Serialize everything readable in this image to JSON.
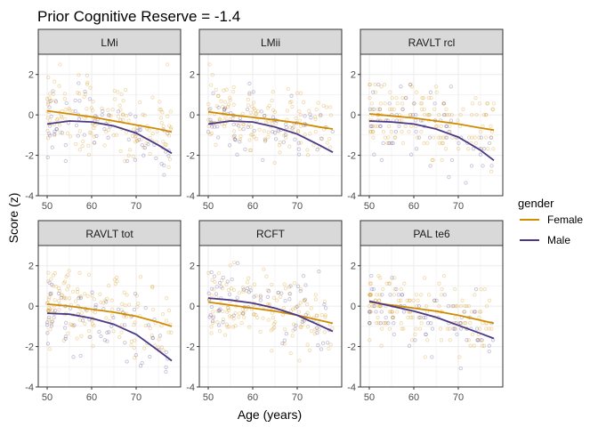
{
  "chart_data": {
    "type": "scatter",
    "title": "Prior Cognitive Reserve = -1.4",
    "xlabel": "Age (years)",
    "ylabel": "Score (z)",
    "xlim": [
      48,
      80
    ],
    "ylim": [
      -4,
      3
    ],
    "x_ticks": [
      50,
      60,
      70
    ],
    "y_ticks": [
      -4,
      -2,
      0,
      2
    ],
    "grid": true,
    "facet_layout": "2 rows x 3 columns",
    "legend": {
      "title": "gender",
      "placement": "right",
      "entries": [
        {
          "name": "Female",
          "color": "#D08C00"
        },
        {
          "name": "Male",
          "color": "#4A3886"
        }
      ]
    },
    "panels": [
      {
        "name": "LMi",
        "series": [
          {
            "name": "Female",
            "x": [
              50,
              55,
              60,
              65,
              70,
              75,
              78
            ],
            "y": [
              0.2,
              0.05,
              -0.1,
              -0.3,
              -0.5,
              -0.7,
              -0.85
            ]
          },
          {
            "name": "Male",
            "x": [
              50,
              55,
              60,
              65,
              70,
              75,
              78
            ],
            "y": [
              -0.45,
              -0.3,
              -0.35,
              -0.55,
              -0.9,
              -1.5,
              -1.9
            ]
          }
        ]
      },
      {
        "name": "LMii",
        "series": [
          {
            "name": "Female",
            "x": [
              50,
              55,
              60,
              65,
              70,
              75,
              78
            ],
            "y": [
              0.15,
              0.0,
              -0.12,
              -0.25,
              -0.4,
              -0.6,
              -0.7
            ]
          },
          {
            "name": "Male",
            "x": [
              50,
              55,
              60,
              65,
              70,
              75,
              78
            ],
            "y": [
              -0.45,
              -0.3,
              -0.35,
              -0.6,
              -0.95,
              -1.5,
              -1.85
            ]
          }
        ]
      },
      {
        "name": "RAVLT rcl",
        "series": [
          {
            "name": "Female",
            "x": [
              50,
              55,
              60,
              65,
              70,
              75,
              78
            ],
            "y": [
              0.05,
              -0.05,
              -0.15,
              -0.3,
              -0.45,
              -0.65,
              -0.75
            ]
          },
          {
            "name": "Male",
            "x": [
              50,
              55,
              60,
              65,
              70,
              75,
              78
            ],
            "y": [
              -0.3,
              -0.35,
              -0.45,
              -0.7,
              -1.1,
              -1.75,
              -2.25
            ]
          }
        ]
      },
      {
        "name": "RAVLT tot",
        "series": [
          {
            "name": "Female",
            "x": [
              50,
              55,
              60,
              65,
              70,
              75,
              78
            ],
            "y": [
              0.1,
              0.0,
              -0.15,
              -0.3,
              -0.5,
              -0.8,
              -1.0
            ]
          },
          {
            "name": "Male",
            "x": [
              50,
              55,
              60,
              65,
              70,
              75,
              78
            ],
            "y": [
              -0.35,
              -0.4,
              -0.6,
              -0.9,
              -1.4,
              -2.2,
              -2.7
            ]
          }
        ]
      },
      {
        "name": "RCFT",
        "series": [
          {
            "name": "Female",
            "x": [
              50,
              55,
              60,
              65,
              70,
              75,
              78
            ],
            "y": [
              0.2,
              0.05,
              -0.1,
              -0.25,
              -0.45,
              -0.7,
              -0.85
            ]
          },
          {
            "name": "Male",
            "x": [
              50,
              55,
              60,
              65,
              70,
              75,
              78
            ],
            "y": [
              0.4,
              0.3,
              0.15,
              -0.1,
              -0.45,
              -0.95,
              -1.25
            ]
          }
        ]
      },
      {
        "name": "PAL te6",
        "series": [
          {
            "name": "Female",
            "x": [
              50,
              55,
              60,
              65,
              70,
              75,
              78
            ],
            "y": [
              0.2,
              0.05,
              -0.1,
              -0.25,
              -0.45,
              -0.7,
              -0.85
            ]
          },
          {
            "name": "Male",
            "x": [
              50,
              55,
              60,
              65,
              70,
              75,
              78
            ],
            "y": [
              0.25,
              0.0,
              -0.25,
              -0.55,
              -0.95,
              -1.35,
              -1.6
            ]
          }
        ]
      }
    ]
  }
}
